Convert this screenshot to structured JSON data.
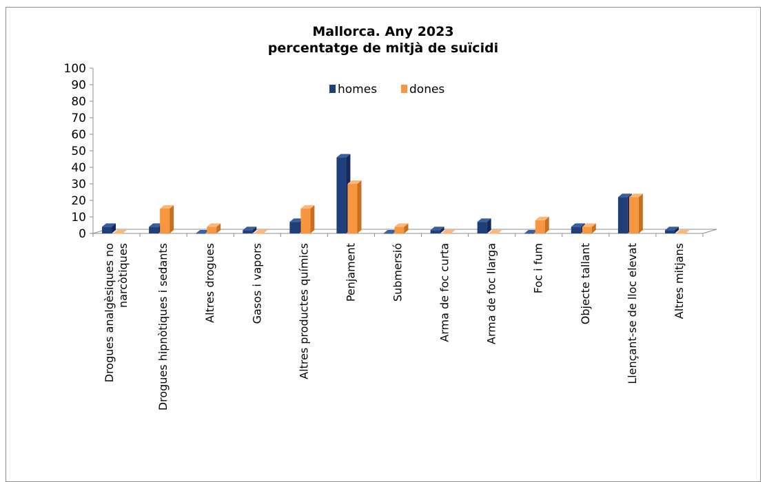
{
  "chart_data": {
    "type": "bar",
    "title": [
      "Mallorca. Any 2023",
      "percentatge de mitjà de suïcidi"
    ],
    "xlabel": "",
    "ylabel": "",
    "ylim": [
      0,
      100
    ],
    "yticks": [
      0,
      10,
      20,
      30,
      40,
      50,
      60,
      70,
      80,
      90,
      100
    ],
    "categories": [
      [
        "Drogues analgèsiques no",
        "narcòtiques"
      ],
      [
        "Drogues hipnòtiques i sedants"
      ],
      [
        "Altres drogues"
      ],
      [
        "Gasos i vapors"
      ],
      [
        "Altres productes químics"
      ],
      [
        "Penjament"
      ],
      [
        "Submersió"
      ],
      [
        "Arma de foc curta"
      ],
      [
        "Arma de foc llarga"
      ],
      [
        "Foc i fum"
      ],
      [
        "Objecte tallant"
      ],
      [
        "Llençant-se de lloc elevat"
      ],
      [
        "Altres mitjans"
      ]
    ],
    "series": [
      {
        "name": "homes",
        "color": "#1f3f7a",
        "side": "#14295a",
        "top": "#3a5fa0",
        "values": [
          4,
          4,
          0,
          2,
          7,
          46,
          0,
          2,
          7,
          0,
          4,
          22,
          2
        ]
      },
      {
        "name": "dones",
        "color": "#f7963f",
        "side": "#c9701f",
        "top": "#fab777",
        "values": [
          0,
          15,
          4,
          0,
          15,
          30,
          4,
          0,
          0,
          8,
          4,
          22,
          0
        ]
      }
    ],
    "legend": "top-center",
    "grid": false
  }
}
